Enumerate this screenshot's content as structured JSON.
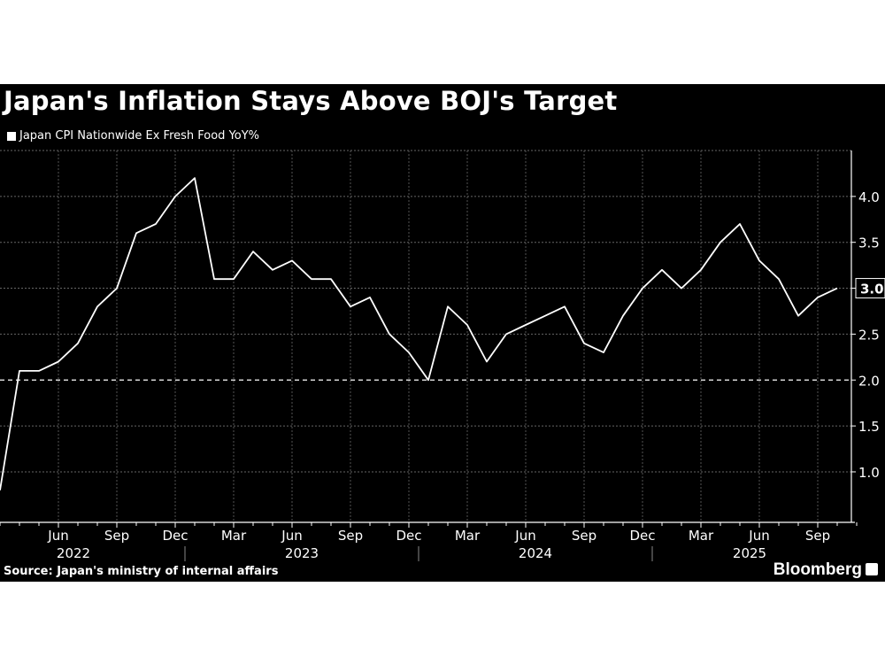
{
  "chart_data": {
    "type": "line",
    "title": "Japan's Inflation Stays Above BOJ's Target",
    "legend": [
      "Japan CPI Nationwide Ex Fresh Food YoY%"
    ],
    "legend_placement": "top-left",
    "source": "Source: Japan's ministry of internal affairs",
    "brand": "Bloomberg",
    "grid": true,
    "ylim": [
      0.45,
      4.5
    ],
    "yticks": [
      1.0,
      1.5,
      2.0,
      2.5,
      3.0,
      3.5,
      4.0
    ],
    "ytick_labels": [
      "1.0",
      "1.5",
      "2.0",
      "2.5",
      "3.0",
      "3.5",
      "4.0"
    ],
    "reference_line": {
      "value": 2.0,
      "style": "dashed"
    },
    "highlight_label": "3.0",
    "x_month_labels": [
      {
        "label": "Jun",
        "date": "2022-06"
      },
      {
        "label": "Sep",
        "date": "2022-09"
      },
      {
        "label": "Dec",
        "date": "2022-12"
      },
      {
        "label": "Mar",
        "date": "2023-03"
      },
      {
        "label": "Jun",
        "date": "2023-06"
      },
      {
        "label": "Sep",
        "date": "2023-09"
      },
      {
        "label": "Dec",
        "date": "2023-12"
      },
      {
        "label": "Mar",
        "date": "2024-03"
      },
      {
        "label": "Jun",
        "date": "2024-06"
      },
      {
        "label": "Sep",
        "date": "2024-09"
      },
      {
        "label": "Dec",
        "date": "2024-12"
      },
      {
        "label": "Mar",
        "date": "2025-03"
      },
      {
        "label": "Jun",
        "date": "2025-06"
      },
      {
        "label": "Sep",
        "date": "2025-09"
      }
    ],
    "x_year_labels": [
      "2022",
      "2023",
      "2024",
      "2025"
    ],
    "x": [
      "2022-03",
      "2022-04",
      "2022-05",
      "2022-06",
      "2022-07",
      "2022-08",
      "2022-09",
      "2022-10",
      "2022-11",
      "2022-12",
      "2023-01",
      "2023-02",
      "2023-03",
      "2023-04",
      "2023-05",
      "2023-06",
      "2023-07",
      "2023-08",
      "2023-09",
      "2023-10",
      "2023-11",
      "2023-12",
      "2024-01",
      "2024-02",
      "2024-03",
      "2024-04",
      "2024-05",
      "2024-06",
      "2024-07",
      "2024-08",
      "2024-09",
      "2024-10",
      "2024-11",
      "2024-12",
      "2025-01",
      "2025-02",
      "2025-03",
      "2025-04",
      "2025-05",
      "2025-06",
      "2025-07",
      "2025-08",
      "2025-09",
      "2025-10"
    ],
    "series": [
      {
        "name": "Japan CPI Nationwide Ex Fresh Food YoY%",
        "color": "#ffffff",
        "values": [
          0.8,
          2.1,
          2.1,
          2.2,
          2.4,
          2.8,
          3.0,
          3.6,
          3.7,
          4.0,
          4.2,
          3.1,
          3.1,
          3.4,
          3.2,
          3.3,
          3.1,
          3.1,
          2.8,
          2.9,
          2.5,
          2.3,
          2.0,
          2.8,
          2.6,
          2.2,
          2.5,
          2.6,
          2.7,
          2.8,
          2.4,
          2.3,
          2.7,
          3.0,
          3.2,
          3.0,
          3.2,
          3.5,
          3.7,
          3.3,
          3.1,
          2.7,
          2.9,
          3.0
        ]
      }
    ]
  }
}
